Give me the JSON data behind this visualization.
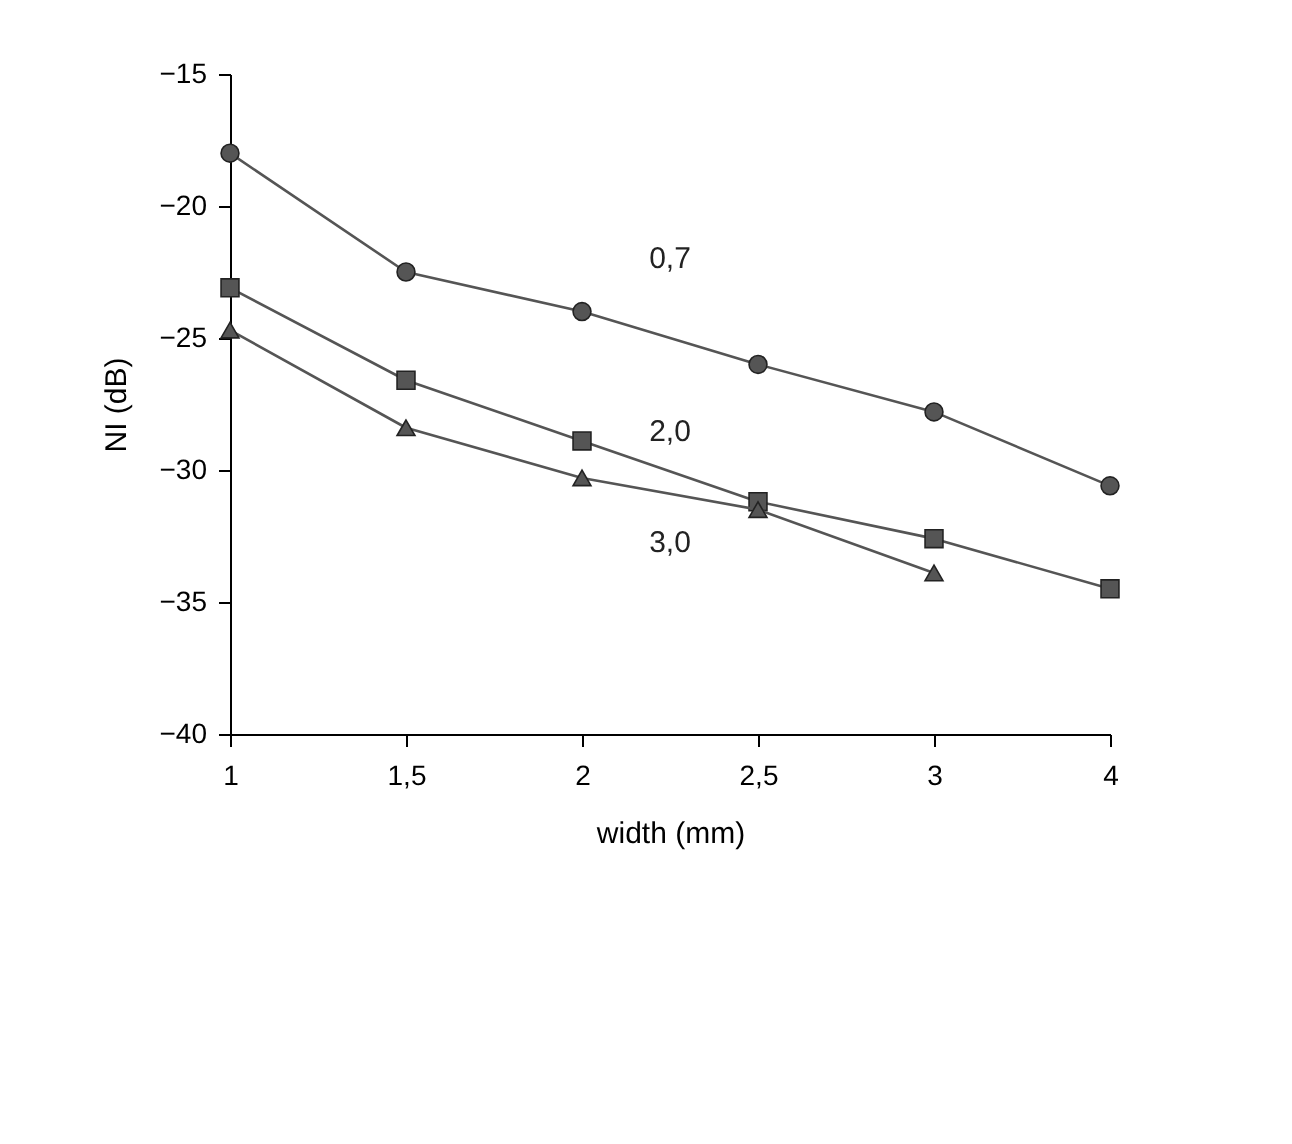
{
  "chart_data": {
    "type": "line",
    "xlabel": "width (mm)",
    "ylabel": "NI (dB)",
    "categories": [
      "1",
      "1,5",
      "2",
      "2,5",
      "3",
      "4"
    ],
    "series": [
      {
        "name": "0,7",
        "color": "#555555",
        "marker": "circle",
        "values": [
          -18,
          -22.5,
          -24,
          -26,
          -27.8,
          -30.6
        ]
      },
      {
        "name": "2,0",
        "color": "#555555",
        "marker": "square",
        "values": [
          -23.1,
          -26.6,
          -28.9,
          -31.2,
          -32.6,
          -34.5
        ]
      },
      {
        "name": "3,0",
        "color": "#555555",
        "marker": "triangle",
        "values": [
          -24.7,
          -28.4,
          -30.3,
          -31.5,
          -33.9,
          null
        ]
      }
    ],
    "ylim": [
      -40,
      -15
    ],
    "yticks": [
      -40,
      -35,
      -30,
      -25,
      -20,
      -15
    ],
    "grid": false,
    "legend": false
  }
}
